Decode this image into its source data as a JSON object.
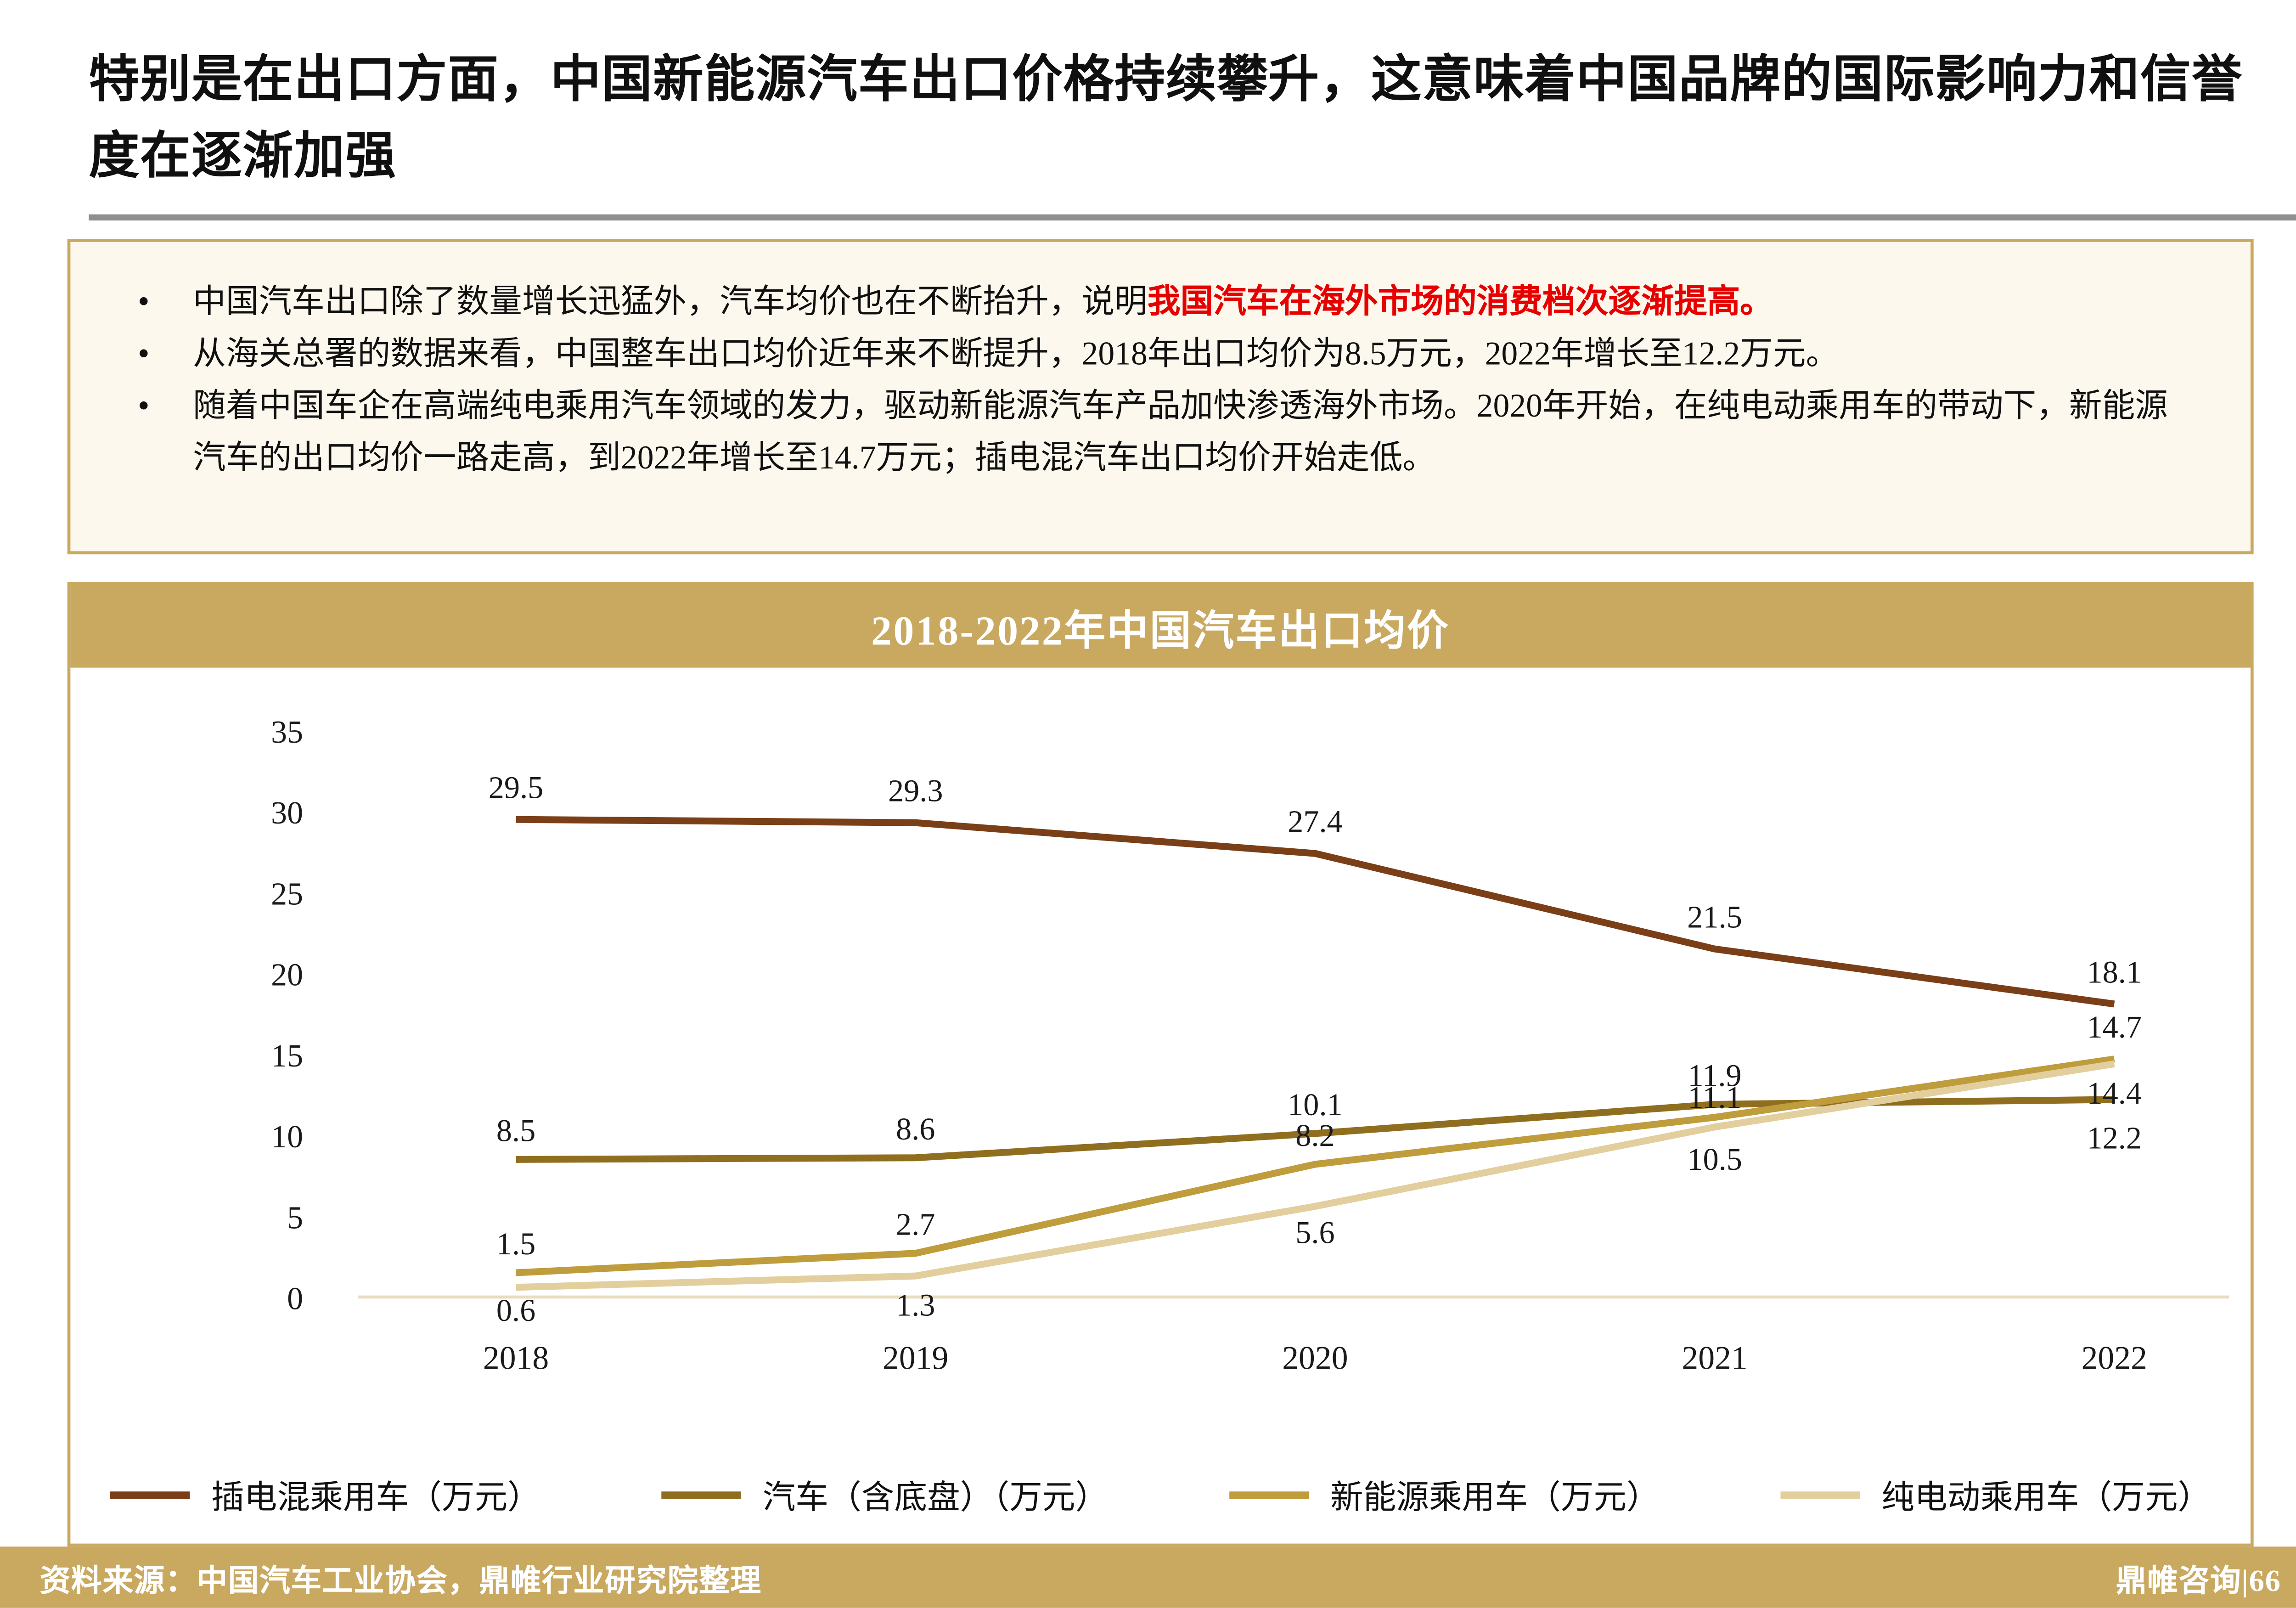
{
  "page": {
    "title": "特别是在出口方面，中国新能源汽车出口价格持续攀升，这意味着中国品牌的国际影响力和信誉度在逐渐加强"
  },
  "callout": {
    "bullets": [
      {
        "pre": "中国汽车出口除了数量增长迅猛外，汽车均价也在不断抬升，说明",
        "highlight": "我国汽车在海外市场的消费档次逐渐提高。"
      },
      {
        "pre": "从海关总署的数据来看，中国整车出口均价近年来不断提升，2018年出口均价为8.5万元，2022年增长至12.2万元。",
        "highlight": ""
      },
      {
        "pre": "随着中国车企在高端纯电乘用汽车领域的发力，驱动新能源汽车产品加快渗透海外市场。2020年开始，在纯电动乘用车的带动下，新能源汽车的出口均价一路走高，到2022年增长至14.7万元；插电混汽车出口均价开始走低。",
        "highlight": ""
      }
    ]
  },
  "chart_data": {
    "type": "line",
    "title": "2018-2022年中国汽车出口均价",
    "categories": [
      "2018",
      "2019",
      "2020",
      "2021",
      "2022"
    ],
    "series": [
      {
        "name": "插电混乘用车（万元）",
        "values": [
          29.5,
          29.3,
          27.4,
          21.5,
          18.1
        ],
        "color": "#7B3F17"
      },
      {
        "name": "汽车（含底盘）（万元）",
        "values": [
          8.5,
          8.6,
          10.1,
          11.9,
          12.2
        ],
        "color": "#8F6F1F"
      },
      {
        "name": "新能源乘用车（万元）",
        "values": [
          1.5,
          2.7,
          8.2,
          11.1,
          14.7
        ],
        "color": "#BF9C3C"
      },
      {
        "name": "纯电动乘用车（万元）",
        "values": [
          0.6,
          1.3,
          5.6,
          10.5,
          14.4
        ],
        "color": "#E3CE9E"
      }
    ],
    "ylabel": "",
    "xlabel": "",
    "ylim": [
      0,
      35
    ],
    "yticks": [
      0,
      5,
      10,
      15,
      20,
      25,
      30,
      35
    ],
    "grid": false,
    "legend_position": "bottom",
    "data_labels": true
  },
  "footer": {
    "source": "资料来源：中国汽车工业协会，鼎帷行业研究院整理",
    "brand": "鼎帷咨询|66"
  }
}
